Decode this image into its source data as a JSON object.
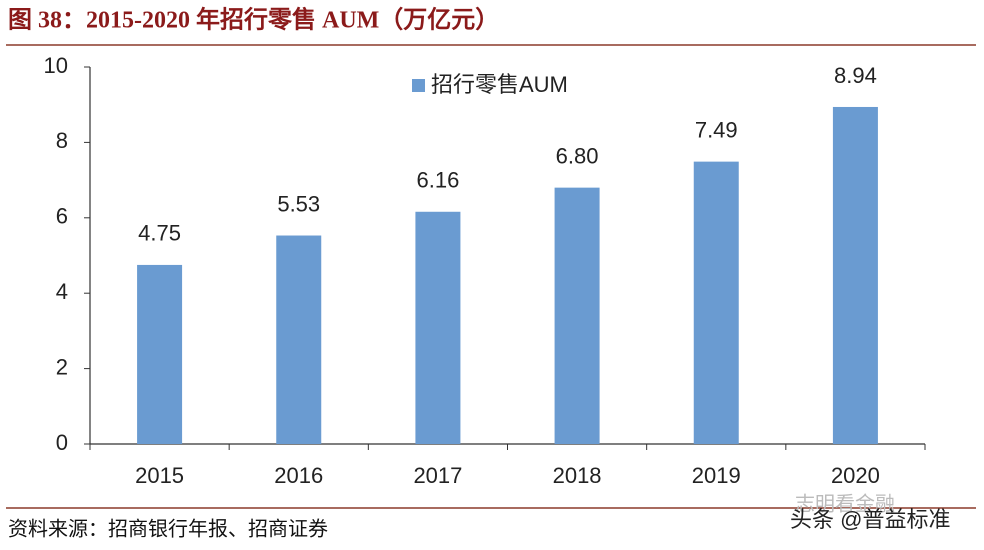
{
  "chart_data": {
    "type": "bar",
    "title": "图 38：2015-2020 年招行零售 AUM（万亿元）",
    "source": "资料来源：招商银行年报、招商证券",
    "watermark": "头条 @普益标准",
    "watermark_faint": "志明看金融",
    "categories": [
      "2015",
      "2016",
      "2017",
      "2018",
      "2019",
      "2020"
    ],
    "series": [
      {
        "name": "招行零售AUM",
        "color": "#6a9bd1",
        "values": [
          4.75,
          5.53,
          6.16,
          6.8,
          7.49,
          8.94
        ],
        "value_labels": [
          "4.75",
          "5.53",
          "6.16",
          "6.80",
          "7.49",
          "8.94"
        ]
      }
    ],
    "ylim": [
      0,
      10
    ],
    "yticks": [
      0,
      2,
      4,
      6,
      8,
      10
    ],
    "grid": false,
    "legend": "top"
  }
}
